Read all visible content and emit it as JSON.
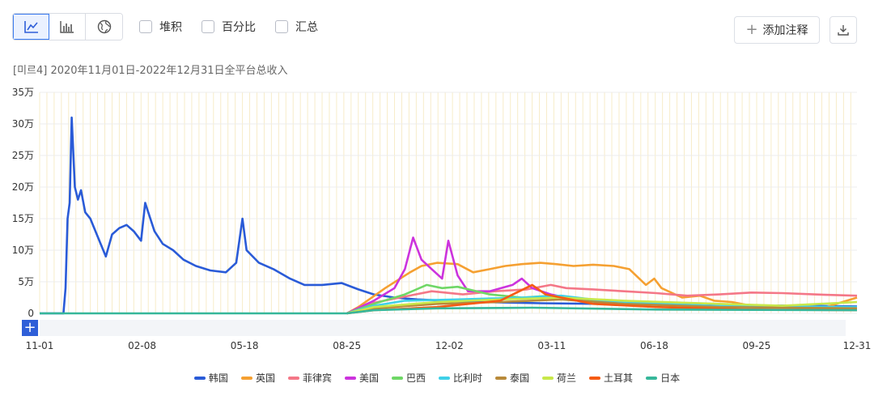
{
  "toolbar": {
    "views": [
      {
        "icon": "line-chart-icon",
        "active": true
      },
      {
        "icon": "bar-chart-icon",
        "active": false
      },
      {
        "icon": "globe-icon",
        "active": false
      }
    ],
    "checkboxes": [
      "堆积",
      "百分比",
      "汇总"
    ],
    "annotate_label": "添加注释",
    "download_icon": "download-icon"
  },
  "subtitle": "[미르4] 2020年11月01日-2022年12月31日全平台总收入",
  "chart_data": {
    "type": "line",
    "ylim": [
      0,
      350000
    ],
    "y_ticks": [
      {
        "value": 0,
        "label": "0"
      },
      {
        "value": 50000,
        "label": "5万"
      },
      {
        "value": 100000,
        "label": "10万"
      },
      {
        "value": 150000,
        "label": "15万"
      },
      {
        "value": 200000,
        "label": "20万"
      },
      {
        "value": 250000,
        "label": "25万"
      },
      {
        "value": 300000,
        "label": "30万"
      },
      {
        "value": 350000,
        "label": "35万"
      }
    ],
    "x_range": [
      "2020-11-01",
      "2022-12-31"
    ],
    "x_ticks": [
      {
        "date": "2020-11-01",
        "label": "11-01"
      },
      {
        "date": "2021-02-08",
        "label": "02-08"
      },
      {
        "date": "2021-05-18",
        "label": "05-18"
      },
      {
        "date": "2021-08-25",
        "label": "08-25"
      },
      {
        "date": "2021-12-02",
        "label": "12-02"
      },
      {
        "date": "2022-03-11",
        "label": "03-11"
      },
      {
        "date": "2022-06-18",
        "label": "06-18"
      },
      {
        "date": "2022-09-25",
        "label": "09-25"
      },
      {
        "date": "2022-12-31",
        "label": "12-31"
      }
    ],
    "grid": true,
    "legend_position": "bottom",
    "series": [
      {
        "name": "韩国",
        "color": "#2a5bd7",
        "points": [
          [
            "2020-11-01",
            0
          ],
          [
            "2020-11-24",
            0
          ],
          [
            "2020-11-26",
            40000
          ],
          [
            "2020-11-28",
            150000
          ],
          [
            "2020-11-30",
            175000
          ],
          [
            "2020-12-02",
            310000
          ],
          [
            "2020-12-05",
            200000
          ],
          [
            "2020-12-08",
            180000
          ],
          [
            "2020-12-11",
            195000
          ],
          [
            "2020-12-15",
            160000
          ],
          [
            "2020-12-20",
            150000
          ],
          [
            "2020-12-25",
            130000
          ],
          [
            "2020-12-30",
            110000
          ],
          [
            "2021-01-04",
            90000
          ],
          [
            "2021-01-10",
            125000
          ],
          [
            "2021-01-17",
            135000
          ],
          [
            "2021-01-24",
            140000
          ],
          [
            "2021-01-31",
            130000
          ],
          [
            "2021-02-07",
            115000
          ],
          [
            "2021-02-11",
            175000
          ],
          [
            "2021-02-14",
            160000
          ],
          [
            "2021-02-20",
            130000
          ],
          [
            "2021-02-28",
            110000
          ],
          [
            "2021-03-10",
            100000
          ],
          [
            "2021-03-20",
            85000
          ],
          [
            "2021-04-01",
            75000
          ],
          [
            "2021-04-15",
            68000
          ],
          [
            "2021-04-30",
            65000
          ],
          [
            "2021-05-10",
            80000
          ],
          [
            "2021-05-16",
            150000
          ],
          [
            "2021-05-20",
            100000
          ],
          [
            "2021-06-01",
            80000
          ],
          [
            "2021-06-15",
            70000
          ],
          [
            "2021-07-01",
            55000
          ],
          [
            "2021-07-15",
            45000
          ],
          [
            "2021-08-01",
            45000
          ],
          [
            "2021-08-20",
            48000
          ],
          [
            "2021-09-05",
            38000
          ],
          [
            "2021-09-20",
            30000
          ],
          [
            "2021-10-10",
            25000
          ],
          [
            "2021-11-01",
            22000
          ],
          [
            "2021-12-01",
            20000
          ],
          [
            "2022-01-01",
            18000
          ],
          [
            "2022-03-01",
            16000
          ],
          [
            "2022-05-01",
            15000
          ],
          [
            "2022-07-01",
            14000
          ],
          [
            "2022-09-01",
            13000
          ],
          [
            "2022-11-01",
            12000
          ],
          [
            "2022-12-31",
            11000
          ]
        ]
      },
      {
        "name": "英国",
        "color": "#f5a031",
        "points": [
          [
            "2021-08-25",
            0
          ],
          [
            "2021-09-05",
            10000
          ],
          [
            "2021-10-01",
            40000
          ],
          [
            "2021-10-25",
            65000
          ],
          [
            "2021-11-05",
            75000
          ],
          [
            "2021-11-20",
            80000
          ],
          [
            "2021-12-10",
            78000
          ],
          [
            "2021-12-25",
            65000
          ],
          [
            "2022-01-10",
            70000
          ],
          [
            "2022-01-25",
            75000
          ],
          [
            "2022-02-10",
            78000
          ],
          [
            "2022-02-28",
            80000
          ],
          [
            "2022-03-15",
            78000
          ],
          [
            "2022-04-01",
            75000
          ],
          [
            "2022-04-20",
            77000
          ],
          [
            "2022-05-10",
            75000
          ],
          [
            "2022-05-25",
            70000
          ],
          [
            "2022-06-10",
            45000
          ],
          [
            "2022-06-18",
            55000
          ],
          [
            "2022-06-25",
            40000
          ],
          [
            "2022-07-15",
            25000
          ],
          [
            "2022-08-01",
            28000
          ],
          [
            "2022-08-15",
            20000
          ],
          [
            "2022-09-01",
            18000
          ],
          [
            "2022-09-20",
            12000
          ],
          [
            "2022-10-10",
            10000
          ],
          [
            "2022-11-01",
            12000
          ],
          [
            "2022-12-01",
            10000
          ],
          [
            "2022-12-31",
            25000
          ]
        ]
      },
      {
        "name": "菲律宾",
        "color": "#f47787",
        "points": [
          [
            "2021-08-25",
            0
          ],
          [
            "2021-09-15",
            15000
          ],
          [
            "2021-10-15",
            25000
          ],
          [
            "2021-11-15",
            35000
          ],
          [
            "2021-12-15",
            30000
          ],
          [
            "2022-01-15",
            35000
          ],
          [
            "2022-02-15",
            38000
          ],
          [
            "2022-03-10",
            45000
          ],
          [
            "2022-03-25",
            40000
          ],
          [
            "2022-04-20",
            38000
          ],
          [
            "2022-05-20",
            35000
          ],
          [
            "2022-06-20",
            32000
          ],
          [
            "2022-07-20",
            28000
          ],
          [
            "2022-08-20",
            30000
          ],
          [
            "2022-09-20",
            33000
          ],
          [
            "2022-10-20",
            32000
          ],
          [
            "2022-11-20",
            30000
          ],
          [
            "2022-12-31",
            28000
          ]
        ]
      },
      {
        "name": "美国",
        "color": "#cc33dd",
        "points": [
          [
            "2021-08-25",
            0
          ],
          [
            "2021-09-20",
            20000
          ],
          [
            "2021-10-10",
            40000
          ],
          [
            "2021-10-20",
            70000
          ],
          [
            "2021-10-28",
            120000
          ],
          [
            "2021-11-05",
            85000
          ],
          [
            "2021-11-15",
            70000
          ],
          [
            "2021-11-25",
            55000
          ],
          [
            "2021-12-01",
            115000
          ],
          [
            "2021-12-10",
            60000
          ],
          [
            "2021-12-20",
            35000
          ],
          [
            "2022-01-10",
            35000
          ],
          [
            "2022-02-01",
            45000
          ],
          [
            "2022-02-10",
            55000
          ],
          [
            "2022-02-20",
            40000
          ],
          [
            "2022-03-10",
            30000
          ],
          [
            "2022-04-10",
            20000
          ],
          [
            "2022-06-10",
            15000
          ],
          [
            "2022-09-10",
            10000
          ],
          [
            "2022-12-31",
            8000
          ]
        ]
      },
      {
        "name": "巴西",
        "color": "#6fd766",
        "points": [
          [
            "2021-08-25",
            0
          ],
          [
            "2021-09-20",
            15000
          ],
          [
            "2021-10-20",
            30000
          ],
          [
            "2021-11-10",
            45000
          ],
          [
            "2021-11-25",
            40000
          ],
          [
            "2021-12-10",
            42000
          ],
          [
            "2022-01-10",
            30000
          ],
          [
            "2022-02-10",
            25000
          ],
          [
            "2022-03-10",
            28000
          ],
          [
            "2022-04-10",
            20000
          ],
          [
            "2022-06-10",
            15000
          ],
          [
            "2022-09-10",
            10000
          ],
          [
            "2022-12-31",
            8000
          ]
        ]
      },
      {
        "name": "比利时",
        "color": "#3fd0e8",
        "points": [
          [
            "2021-08-25",
            0
          ],
          [
            "2021-09-20",
            12000
          ],
          [
            "2021-10-20",
            20000
          ],
          [
            "2021-12-10",
            22000
          ],
          [
            "2022-02-10",
            25000
          ],
          [
            "2022-03-20",
            28000
          ],
          [
            "2022-05-10",
            18000
          ],
          [
            "2022-08-10",
            12000
          ],
          [
            "2022-12-31",
            10000
          ]
        ]
      },
      {
        "name": "泰国",
        "color": "#b88a3a",
        "points": [
          [
            "2021-08-25",
            0
          ],
          [
            "2021-09-20",
            8000
          ],
          [
            "2021-11-20",
            15000
          ],
          [
            "2022-01-20",
            18000
          ],
          [
            "2022-03-20",
            22000
          ],
          [
            "2022-05-20",
            15000
          ],
          [
            "2022-08-20",
            10000
          ],
          [
            "2022-12-31",
            8000
          ]
        ]
      },
      {
        "name": "荷兰",
        "color": "#c8e84a",
        "points": [
          [
            "2021-08-25",
            0
          ],
          [
            "2021-09-20",
            10000
          ],
          [
            "2021-11-20",
            18000
          ],
          [
            "2022-01-20",
            22000
          ],
          [
            "2022-03-20",
            25000
          ],
          [
            "2022-05-20",
            20000
          ],
          [
            "2022-08-20",
            15000
          ],
          [
            "2022-10-20",
            12000
          ],
          [
            "2022-12-31",
            18000
          ]
        ]
      },
      {
        "name": "土耳其",
        "color": "#f55b14",
        "points": [
          [
            "2021-08-25",
            0
          ],
          [
            "2021-09-20",
            5000
          ],
          [
            "2021-11-20",
            10000
          ],
          [
            "2022-01-20",
            20000
          ],
          [
            "2022-02-20",
            45000
          ],
          [
            "2022-03-05",
            30000
          ],
          [
            "2022-04-20",
            15000
          ],
          [
            "2022-06-20",
            10000
          ],
          [
            "2022-09-20",
            6000
          ],
          [
            "2022-12-31",
            5000
          ]
        ]
      },
      {
        "name": "日本",
        "color": "#36b79a",
        "points": [
          [
            "2020-11-01",
            0
          ],
          [
            "2021-08-25",
            0
          ],
          [
            "2021-09-20",
            5000
          ],
          [
            "2021-11-20",
            8000
          ],
          [
            "2022-02-20",
            9000
          ],
          [
            "2022-06-20",
            6000
          ],
          [
            "2022-12-31",
            5000
          ]
        ]
      }
    ]
  }
}
